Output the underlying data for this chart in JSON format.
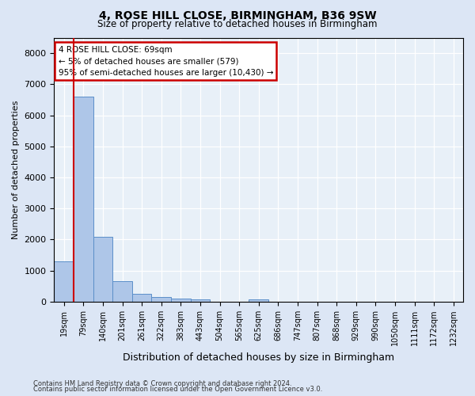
{
  "title1": "4, ROSE HILL CLOSE, BIRMINGHAM, B36 9SW",
  "title2": "Size of property relative to detached houses in Birmingham",
  "xlabel": "Distribution of detached houses by size in Birmingham",
  "ylabel": "Number of detached properties",
  "footer1": "Contains HM Land Registry data © Crown copyright and database right 2024.",
  "footer2": "Contains public sector information licensed under the Open Government Licence v3.0.",
  "annotation_line1": "4 ROSE HILL CLOSE: 69sqm",
  "annotation_line2": "← 5% of detached houses are smaller (579)",
  "annotation_line3": "95% of semi-detached houses are larger (10,430) →",
  "bar_color": "#aec6e8",
  "bar_edge_color": "#5b8fc9",
  "property_line_color": "#cc0000",
  "property_line_x": 1,
  "bin_labels": [
    "19sqm",
    "79sqm",
    "140sqm",
    "201sqm",
    "261sqm",
    "322sqm",
    "383sqm",
    "443sqm",
    "504sqm",
    "565sqm",
    "625sqm",
    "686sqm",
    "747sqm",
    "807sqm",
    "868sqm",
    "929sqm",
    "990sqm",
    "1050sqm",
    "1111sqm",
    "1172sqm",
    "1232sqm"
  ],
  "bar_heights": [
    1300,
    6600,
    2080,
    650,
    260,
    150,
    110,
    75,
    0,
    0,
    75,
    0,
    0,
    0,
    0,
    0,
    0,
    0,
    0,
    0,
    0
  ],
  "ylim": [
    0,
    8500
  ],
  "yticks": [
    0,
    1000,
    2000,
    3000,
    4000,
    5000,
    6000,
    7000,
    8000
  ],
  "background_color": "#dce6f5",
  "plot_bg_color": "#e8f0f8",
  "grid_color": "#ffffff",
  "annotation_box_color": "#ffffff",
  "annotation_box_edge": "#cc0000"
}
